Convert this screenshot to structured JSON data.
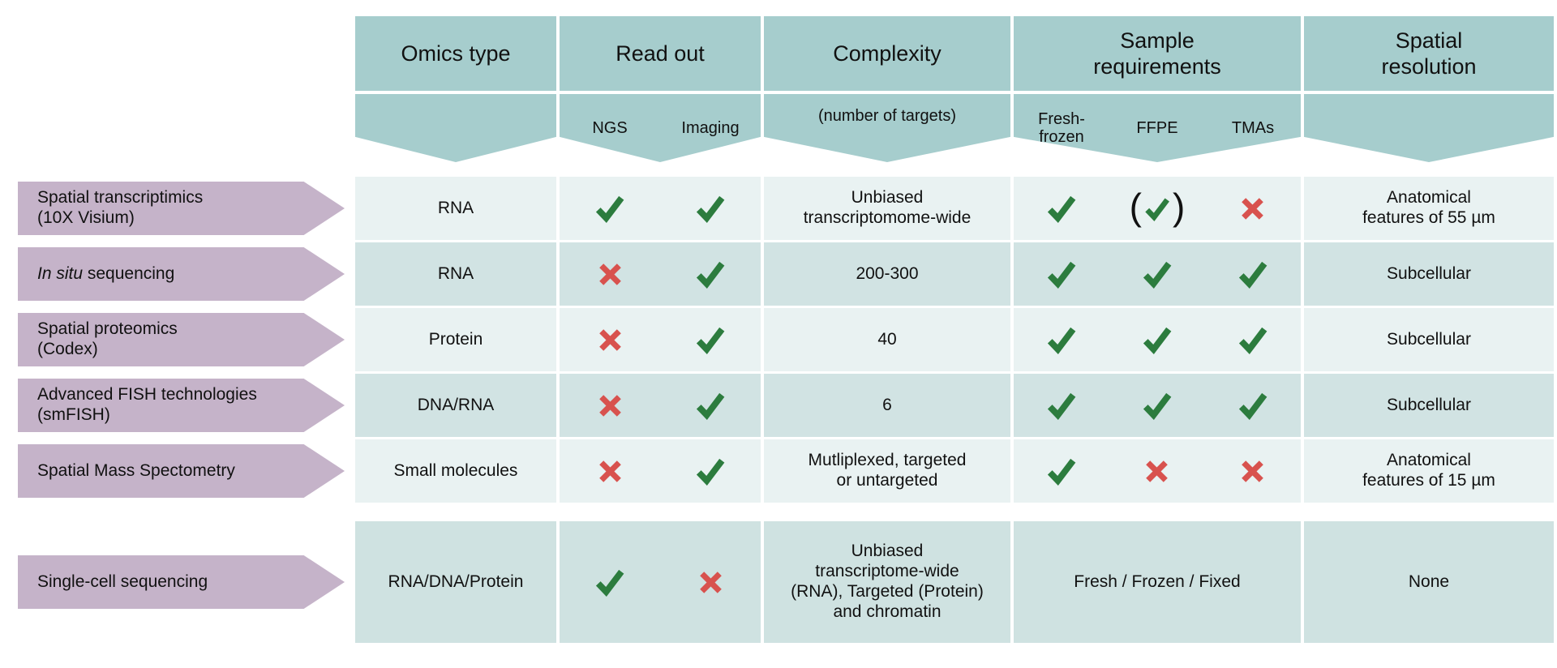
{
  "colors": {
    "header_teal": "#a6cdcd",
    "row_light": "#e9f2f2",
    "row_dark": "#d1e3e3",
    "row_bottom": "#cfe2e1",
    "label_purple": "#c5b3c9",
    "check_green": "#2c7c3e",
    "cross_red": "#d8524e"
  },
  "header": {
    "columns": [
      {
        "title": "Omics type",
        "sub": ""
      },
      {
        "title": "Read out",
        "subs": [
          "NGS",
          "Imaging"
        ]
      },
      {
        "title": "Complexity",
        "sub": "(number of targets)"
      },
      {
        "title": "Sample\nrequirements",
        "subs": [
          "Fresh-\nfrozen",
          "FFPE",
          "TMAs"
        ]
      },
      {
        "title": "Spatial\nresolution",
        "sub": ""
      }
    ]
  },
  "rows": [
    {
      "label": "Spatial transcriptimics\n(10X Visium)",
      "omics": "RNA",
      "readout": {
        "ngs": "yes",
        "imaging": "yes"
      },
      "complexity": "Unbiased\ntranscriptomome-wide",
      "sample": {
        "fresh_frozen": "yes",
        "ffpe": "yes_conditional",
        "tmas": "no"
      },
      "resolution": "Anatomical\nfeatures of 55 µm"
    },
    {
      "label_italic": "In situ",
      "label": " sequencing",
      "omics": "RNA",
      "readout": {
        "ngs": "no",
        "imaging": "yes"
      },
      "complexity": "200-300",
      "sample": {
        "fresh_frozen": "yes",
        "ffpe": "yes",
        "tmas": "yes"
      },
      "resolution": "Subcellular"
    },
    {
      "label": "Spatial proteomics\n(Codex)",
      "omics": "Protein",
      "readout": {
        "ngs": "no",
        "imaging": "yes"
      },
      "complexity": "40",
      "sample": {
        "fresh_frozen": "yes",
        "ffpe": "yes",
        "tmas": "yes"
      },
      "resolution": "Subcellular"
    },
    {
      "label": "Advanced FISH technologies\n(smFISH)",
      "omics": "DNA/RNA",
      "readout": {
        "ngs": "no",
        "imaging": "yes"
      },
      "complexity": "6",
      "sample": {
        "fresh_frozen": "yes",
        "ffpe": "yes",
        "tmas": "yes"
      },
      "resolution": "Subcellular"
    },
    {
      "label": "Spatial Mass Spectometry",
      "omics": "Small molecules",
      "readout": {
        "ngs": "no",
        "imaging": "yes"
      },
      "complexity": "Mutliplexed, targeted\nor untargeted",
      "sample": {
        "fresh_frozen": "yes",
        "ffpe": "no",
        "tmas": "no"
      },
      "resolution": "Anatomical\nfeatures of 15 µm"
    }
  ],
  "single_cell_row": {
    "label": "Single-cell sequencing",
    "omics": "RNA/DNA/Protein",
    "readout": {
      "ngs": "yes",
      "imaging": "no"
    },
    "complexity": "Unbiased\ntranscriptome-wide\n(RNA), Targeted (Protein)\nand chromatin",
    "sample": "Fresh / Frozen / Fixed",
    "resolution": "None"
  }
}
